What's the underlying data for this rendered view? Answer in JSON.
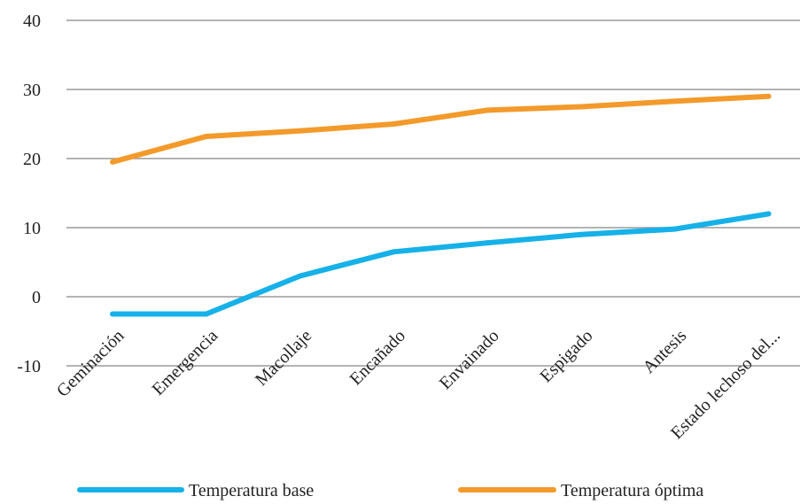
{
  "chart_data": {
    "type": "line",
    "categories": [
      "Geminación",
      "Emergencia",
      "Macollaje",
      "Encañado",
      "Envainado",
      "Espigado",
      "Antesis",
      "Estado lechoso del..."
    ],
    "series": [
      {
        "name": "Temperatura base",
        "color": "#16b1e8",
        "values": [
          -2.5,
          -2.5,
          3,
          6.5,
          7.8,
          9,
          9.8,
          12
        ]
      },
      {
        "name": "Temperatura óptima",
        "color": "#f39a2b",
        "values": [
          19.5,
          23.2,
          24,
          25,
          27,
          27.5,
          28.3,
          29
        ]
      }
    ],
    "yticks": [
      "40",
      "30",
      "20",
      "10",
      "0",
      "-10"
    ],
    "ylim": [
      -10,
      40
    ],
    "grid": true,
    "legend_position": "bottom"
  }
}
